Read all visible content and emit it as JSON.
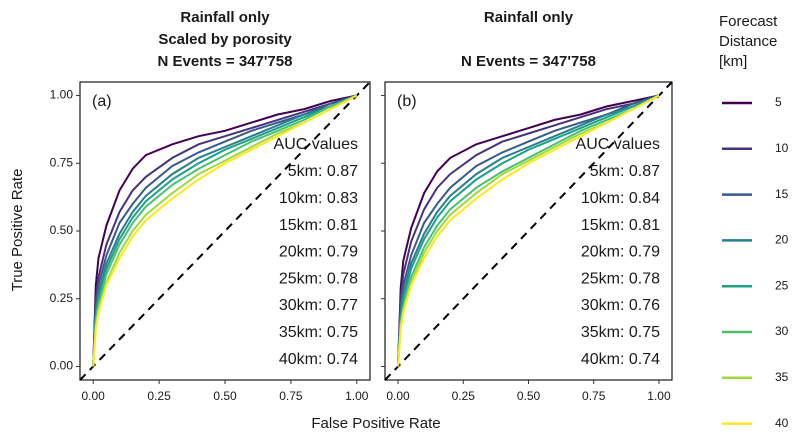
{
  "figure": {
    "xlabel": "False Positive Rate",
    "ylabel": "True Positive Rate",
    "legend_title": [
      "Forecast",
      "Distance",
      "[km]"
    ]
  },
  "chart_data": [
    {
      "type": "line",
      "panel_label": "(a)",
      "title": [
        "Rainfall only",
        "Scaled by porosity",
        "N Events = 347'758"
      ],
      "annotation": {
        "title": "AUC values",
        "lines": [
          "5km: 0.87",
          "10km: 0.83",
          "15km: 0.81",
          "20km: 0.79",
          "25km: 0.78",
          "30km: 0.77",
          "35km: 0.75",
          "40km: 0.74"
        ]
      },
      "x": [
        0,
        0.01,
        0.02,
        0.05,
        0.1,
        0.15,
        0.2,
        0.3,
        0.4,
        0.5,
        0.6,
        0.7,
        0.8,
        0.9,
        1
      ],
      "xlim": [
        -0.05,
        1.05
      ],
      "ylim": [
        -0.05,
        1.05
      ],
      "xticks": [
        {
          "value": 0,
          "label": "0.00"
        },
        {
          "value": 0.25,
          "label": "0.25"
        },
        {
          "value": 0.5,
          "label": "0.50"
        },
        {
          "value": 0.75,
          "label": "0.75"
        },
        {
          "value": 1,
          "label": "1.00"
        }
      ],
      "yticks": [
        {
          "value": 0,
          "label": "0.00"
        },
        {
          "value": 0.25,
          "label": "0.25"
        },
        {
          "value": 0.5,
          "label": "0.50"
        },
        {
          "value": 0.75,
          "label": "0.75"
        },
        {
          "value": 1,
          "label": "1.00"
        }
      ],
      "series": [
        {
          "name": "5",
          "color": "#440154",
          "values": [
            0,
            0.3,
            0.4,
            0.52,
            0.65,
            0.73,
            0.78,
            0.82,
            0.85,
            0.87,
            0.9,
            0.93,
            0.95,
            0.98,
            1
          ]
        },
        {
          "name": "10",
          "color": "#46337e",
          "values": [
            0,
            0.25,
            0.33,
            0.45,
            0.57,
            0.65,
            0.7,
            0.77,
            0.82,
            0.85,
            0.88,
            0.91,
            0.94,
            0.97,
            1
          ]
        },
        {
          "name": "15",
          "color": "#365c8d",
          "values": [
            0,
            0.22,
            0.3,
            0.41,
            0.53,
            0.6,
            0.66,
            0.74,
            0.79,
            0.83,
            0.87,
            0.9,
            0.93,
            0.97,
            1
          ]
        },
        {
          "name": "20",
          "color": "#277f8e",
          "values": [
            0,
            0.2,
            0.27,
            0.38,
            0.49,
            0.57,
            0.63,
            0.71,
            0.77,
            0.81,
            0.85,
            0.89,
            0.93,
            0.96,
            1
          ]
        },
        {
          "name": "25",
          "color": "#1fa187",
          "values": [
            0,
            0.18,
            0.25,
            0.36,
            0.47,
            0.55,
            0.61,
            0.69,
            0.75,
            0.8,
            0.84,
            0.88,
            0.92,
            0.96,
            1
          ]
        },
        {
          "name": "30",
          "color": "#4ac16d",
          "values": [
            0,
            0.17,
            0.23,
            0.34,
            0.45,
            0.53,
            0.59,
            0.67,
            0.73,
            0.78,
            0.83,
            0.87,
            0.91,
            0.96,
            1
          ]
        },
        {
          "name": "35",
          "color": "#a0da39",
          "values": [
            0,
            0.15,
            0.21,
            0.31,
            0.42,
            0.5,
            0.56,
            0.64,
            0.71,
            0.76,
            0.81,
            0.86,
            0.9,
            0.95,
            1
          ]
        },
        {
          "name": "40",
          "color": "#fde725",
          "values": [
            0,
            0.14,
            0.2,
            0.3,
            0.4,
            0.48,
            0.54,
            0.62,
            0.69,
            0.75,
            0.8,
            0.85,
            0.9,
            0.95,
            1
          ]
        }
      ]
    },
    {
      "type": "line",
      "panel_label": "(b)",
      "title": [
        "Rainfall only",
        "N Events = 347'758"
      ],
      "annotation": {
        "title": "AUC values",
        "lines": [
          "5km: 0.87",
          "10km: 0.84",
          "15km: 0.81",
          "20km: 0.79",
          "25km: 0.78",
          "30km: 0.76",
          "35km: 0.75",
          "40km: 0.74"
        ]
      },
      "x": [
        0,
        0.01,
        0.02,
        0.05,
        0.1,
        0.15,
        0.2,
        0.3,
        0.4,
        0.5,
        0.6,
        0.7,
        0.8,
        0.9,
        1
      ],
      "xlim": [
        -0.05,
        1.05
      ],
      "ylim": [
        -0.05,
        1.05
      ],
      "xticks": [
        {
          "value": 0,
          "label": "0.00"
        },
        {
          "value": 0.25,
          "label": "0.25"
        },
        {
          "value": 0.5,
          "label": "0.50"
        },
        {
          "value": 0.75,
          "label": "0.75"
        },
        {
          "value": 1,
          "label": "1.00"
        }
      ],
      "yticks": [
        0,
        0.25,
        0.5,
        0.75,
        1
      ],
      "series": [
        {
          "name": "5",
          "color": "#440154",
          "values": [
            0,
            0.29,
            0.39,
            0.51,
            0.64,
            0.72,
            0.77,
            0.82,
            0.85,
            0.88,
            0.91,
            0.93,
            0.96,
            0.98,
            1
          ]
        },
        {
          "name": "10",
          "color": "#46337e",
          "values": [
            0,
            0.25,
            0.34,
            0.46,
            0.58,
            0.66,
            0.71,
            0.78,
            0.83,
            0.86,
            0.89,
            0.92,
            0.95,
            0.97,
            1
          ]
        },
        {
          "name": "15",
          "color": "#365c8d",
          "values": [
            0,
            0.22,
            0.3,
            0.41,
            0.53,
            0.6,
            0.66,
            0.74,
            0.79,
            0.83,
            0.87,
            0.9,
            0.93,
            0.97,
            1
          ]
        },
        {
          "name": "20",
          "color": "#277f8e",
          "values": [
            0,
            0.2,
            0.27,
            0.38,
            0.49,
            0.57,
            0.63,
            0.71,
            0.77,
            0.81,
            0.85,
            0.89,
            0.93,
            0.96,
            1
          ]
        },
        {
          "name": "25",
          "color": "#1fa187",
          "values": [
            0,
            0.18,
            0.25,
            0.36,
            0.47,
            0.55,
            0.61,
            0.69,
            0.75,
            0.8,
            0.84,
            0.88,
            0.92,
            0.96,
            1
          ]
        },
        {
          "name": "30",
          "color": "#4ac16d",
          "values": [
            0,
            0.16,
            0.22,
            0.33,
            0.44,
            0.52,
            0.58,
            0.66,
            0.72,
            0.77,
            0.82,
            0.87,
            0.91,
            0.95,
            1
          ]
        },
        {
          "name": "35",
          "color": "#a0da39",
          "values": [
            0,
            0.15,
            0.21,
            0.31,
            0.42,
            0.5,
            0.56,
            0.64,
            0.71,
            0.76,
            0.81,
            0.86,
            0.9,
            0.95,
            1
          ]
        },
        {
          "name": "40",
          "color": "#fde725",
          "values": [
            0,
            0.14,
            0.2,
            0.3,
            0.4,
            0.48,
            0.54,
            0.62,
            0.69,
            0.75,
            0.8,
            0.85,
            0.9,
            0.95,
            1
          ]
        }
      ]
    }
  ]
}
